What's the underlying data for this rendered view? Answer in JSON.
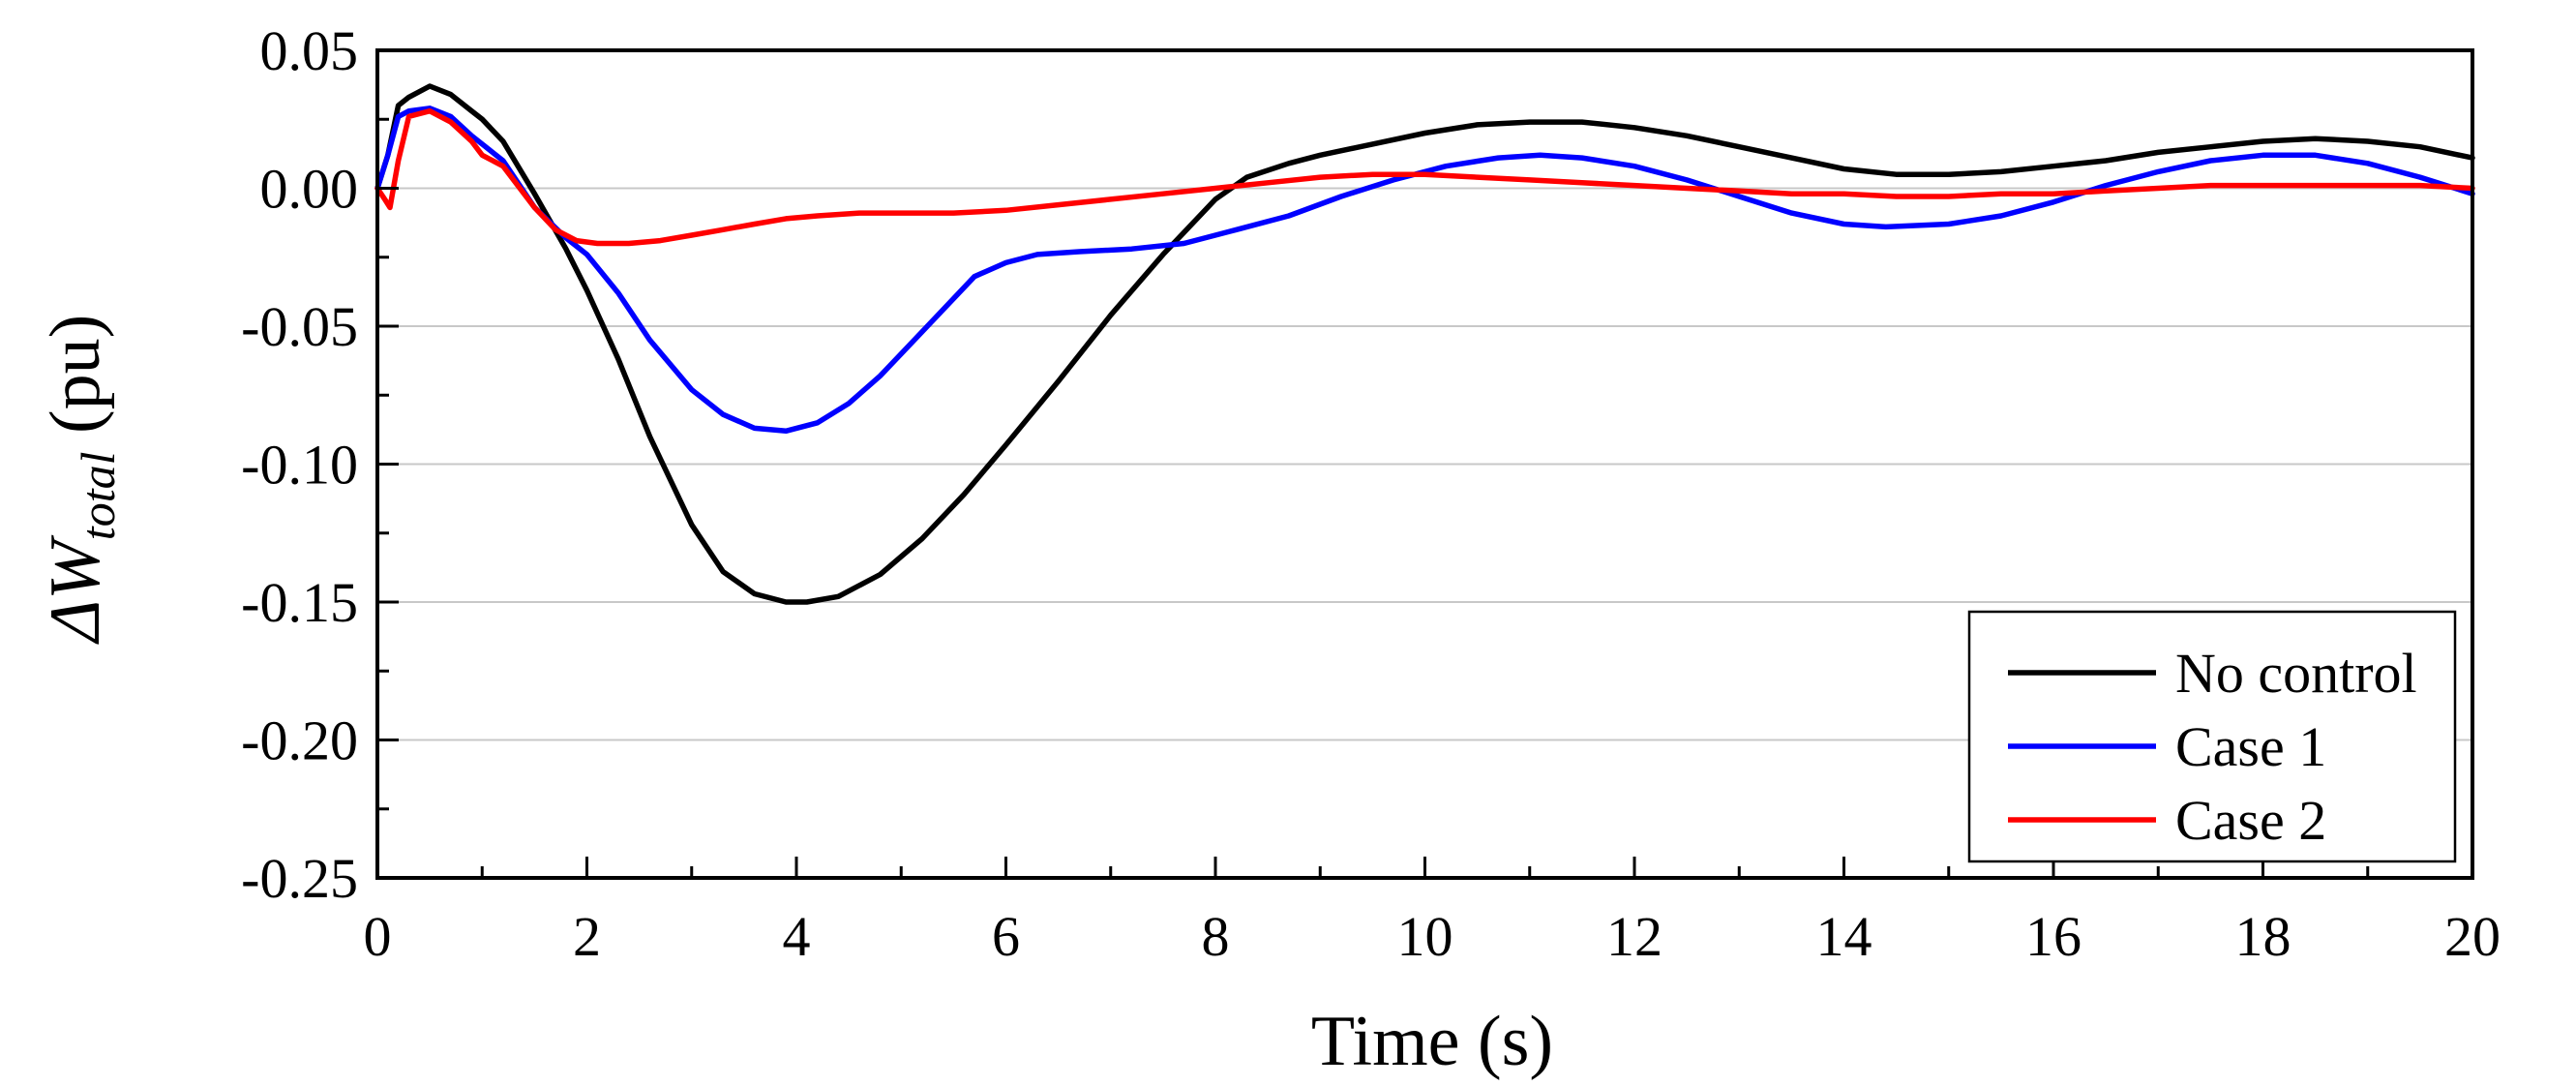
{
  "chart_data": {
    "type": "line",
    "title": "",
    "xlabel": "Time (s)",
    "ylabel": {
      "prefix": "ΔW",
      "subscript": "total",
      "suffix": " (pu)"
    },
    "xlim": [
      0,
      20
    ],
    "ylim": [
      -0.25,
      0.05
    ],
    "xticks": [
      0,
      2,
      4,
      6,
      8,
      10,
      12,
      14,
      16,
      18,
      20
    ],
    "xtick_labels": [
      "0",
      "2",
      "4",
      "6",
      "8",
      "10",
      "12",
      "14",
      "16",
      "18",
      "20"
    ],
    "yticks": [
      0.05,
      0.0,
      -0.05,
      -0.1,
      -0.15,
      -0.2,
      -0.25
    ],
    "ytick_labels": [
      "0.05",
      "0.00",
      "-0.05",
      "-0.10",
      "-0.15",
      "-0.20",
      "-0.25"
    ],
    "grid": "horizontal",
    "legend_position": "bottom-right",
    "series": [
      {
        "name": "No control",
        "color": "#000000",
        "x": [
          0,
          0.1,
          0.2,
          0.3,
          0.5,
          0.7,
          0.9,
          1.0,
          1.2,
          1.5,
          1.8,
          2.0,
          2.3,
          2.6,
          3.0,
          3.3,
          3.6,
          3.9,
          4.1,
          4.4,
          4.8,
          5.2,
          5.6,
          6.0,
          6.5,
          7.0,
          7.5,
          8.0,
          8.3,
          8.7,
          9.0,
          9.5,
          10.0,
          10.5,
          11.0,
          11.5,
          12.0,
          12.5,
          13.0,
          13.5,
          14.0,
          14.5,
          15.0,
          15.5,
          16.0,
          16.5,
          17.0,
          17.5,
          18.0,
          18.5,
          19.0,
          19.5,
          20.0
        ],
        "y": [
          0.0,
          0.012,
          0.03,
          0.033,
          0.037,
          0.034,
          0.028,
          0.025,
          0.017,
          -0.002,
          -0.022,
          -0.037,
          -0.062,
          -0.09,
          -0.122,
          -0.139,
          -0.147,
          -0.15,
          -0.15,
          -0.148,
          -0.14,
          -0.127,
          -0.111,
          -0.093,
          -0.07,
          -0.046,
          -0.024,
          -0.004,
          0.004,
          0.009,
          0.012,
          0.016,
          0.02,
          0.023,
          0.024,
          0.024,
          0.022,
          0.019,
          0.015,
          0.011,
          0.007,
          0.005,
          0.005,
          0.006,
          0.008,
          0.01,
          0.013,
          0.015,
          0.017,
          0.018,
          0.017,
          0.015,
          0.011
        ]
      },
      {
        "name": "Case 1",
        "color": "#0000ff",
        "x": [
          0,
          0.1,
          0.2,
          0.3,
          0.5,
          0.7,
          0.9,
          1.0,
          1.2,
          1.5,
          1.8,
          2.0,
          2.3,
          2.6,
          3.0,
          3.3,
          3.6,
          3.9,
          4.2,
          4.5,
          4.8,
          5.1,
          5.4,
          5.7,
          6.0,
          6.3,
          6.7,
          7.2,
          7.7,
          8.2,
          8.7,
          9.2,
          9.7,
          10.2,
          10.7,
          11.1,
          11.5,
          12.0,
          12.5,
          13.0,
          13.5,
          14.0,
          14.4,
          15.0,
          15.5,
          16.0,
          16.5,
          17.0,
          17.5,
          18.0,
          18.5,
          19.0,
          19.5,
          20.0
        ],
        "y": [
          0.0,
          0.012,
          0.026,
          0.028,
          0.029,
          0.026,
          0.019,
          0.016,
          0.01,
          -0.007,
          -0.018,
          -0.024,
          -0.038,
          -0.055,
          -0.073,
          -0.082,
          -0.087,
          -0.088,
          -0.085,
          -0.078,
          -0.068,
          -0.056,
          -0.044,
          -0.032,
          -0.027,
          -0.024,
          -0.023,
          -0.022,
          -0.02,
          -0.015,
          -0.01,
          -0.003,
          0.003,
          0.008,
          0.011,
          0.012,
          0.011,
          0.008,
          0.003,
          -0.003,
          -0.009,
          -0.013,
          -0.014,
          -0.013,
          -0.01,
          -0.005,
          0.001,
          0.006,
          0.01,
          0.012,
          0.012,
          0.009,
          0.004,
          -0.002
        ]
      },
      {
        "name": "Case 2",
        "color": "#ff0000",
        "x": [
          0,
          0.07,
          0.12,
          0.2,
          0.3,
          0.5,
          0.7,
          0.9,
          1.0,
          1.2,
          1.5,
          1.7,
          1.9,
          2.1,
          2.4,
          2.7,
          3.0,
          3.3,
          3.6,
          3.9,
          4.2,
          4.6,
          5.0,
          5.5,
          6.0,
          6.5,
          7.0,
          7.5,
          8.0,
          8.5,
          9.0,
          9.5,
          10.0,
          10.5,
          11.0,
          11.5,
          12.0,
          12.5,
          13.0,
          13.5,
          14.0,
          14.5,
          15.0,
          15.5,
          16.0,
          16.5,
          17.0,
          17.5,
          18.0,
          18.5,
          19.0,
          19.5,
          20.0
        ],
        "y": [
          0.0,
          -0.004,
          -0.007,
          0.01,
          0.026,
          0.028,
          0.024,
          0.017,
          0.012,
          0.008,
          -0.007,
          -0.015,
          -0.019,
          -0.02,
          -0.02,
          -0.019,
          -0.017,
          -0.015,
          -0.013,
          -0.011,
          -0.01,
          -0.009,
          -0.009,
          -0.009,
          -0.008,
          -0.006,
          -0.004,
          -0.002,
          0.0,
          0.002,
          0.004,
          0.005,
          0.005,
          0.004,
          0.003,
          0.002,
          0.001,
          0.0,
          -0.001,
          -0.002,
          -0.002,
          -0.003,
          -0.003,
          -0.002,
          -0.002,
          -0.001,
          0.0,
          0.001,
          0.001,
          0.001,
          0.001,
          0.001,
          0.0
        ]
      }
    ]
  }
}
